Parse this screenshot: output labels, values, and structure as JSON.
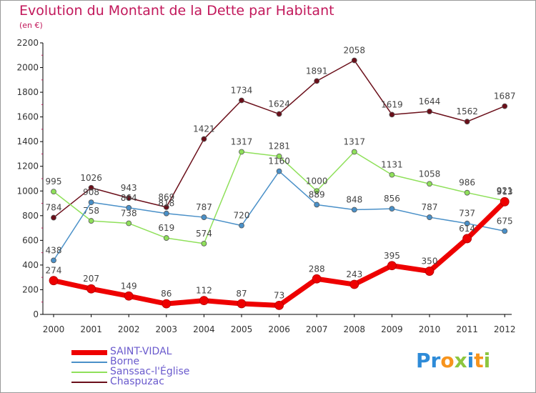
{
  "title": "Evolution du Montant de la Dette par Habitant",
  "subtitle": "(en €)",
  "logo": {
    "text": "ProXiti",
    "letters": [
      "P",
      "r",
      "o",
      "x",
      "i",
      "t",
      "i"
    ],
    "colors": [
      "#2e8bd8",
      "#2e8bd8",
      "#f7941d",
      "#8dc63f",
      "#2e8bd8",
      "#f7941d",
      "#8dc63f"
    ]
  },
  "chart_data": {
    "type": "line",
    "x": [
      "2000",
      "2001",
      "2002",
      "2003",
      "2004",
      "2005",
      "2006",
      "2007",
      "2008",
      "2009",
      "2010",
      "2011",
      "2012"
    ],
    "ylim": [
      0,
      2200
    ],
    "yticks": [
      "0",
      "200",
      "400",
      "600",
      "800",
      "1000",
      "1200",
      "1400",
      "1600",
      "1800",
      "2000",
      "2200"
    ],
    "grid": false,
    "legend_position": "bottom-left",
    "series": [
      {
        "name": "Chaspuzac",
        "color": "#6b0f1a",
        "values": [
          784,
          1026,
          943,
          869,
          1421,
          1734,
          1624,
          1891,
          2058,
          1619,
          1644,
          1562,
          1687
        ],
        "labels": [
          "784",
          "1026",
          "943",
          "869",
          "1421",
          "1734",
          "1624",
          "1891",
          "2058",
          "1619",
          "1644",
          "1562",
          "1687"
        ]
      },
      {
        "name": "Sanssac-l'Église",
        "color": "#8fe05a",
        "values": [
          995,
          758,
          738,
          619,
          574,
          1317,
          1281,
          1000,
          1317,
          1131,
          1058,
          986,
          921
        ],
        "labels": [
          "995",
          "758",
          "738",
          "619",
          "574",
          "1317",
          "1281",
          "1000",
          "1317",
          "1131",
          "1058",
          "986",
          "921"
        ]
      },
      {
        "name": "Borne",
        "color": "#4a90c8",
        "values": [
          438,
          908,
          864,
          818,
          787,
          720,
          1160,
          889,
          848,
          856,
          787,
          737,
          675
        ],
        "labels": [
          "438",
          "908",
          "864",
          "818",
          "787",
          "720",
          "1160",
          "889",
          "848",
          "856",
          "787",
          "737",
          "675"
        ]
      },
      {
        "name": "SAINT-VIDAL",
        "color": "#ee0000",
        "values": [
          274,
          207,
          149,
          86,
          112,
          87,
          73,
          288,
          243,
          395,
          350,
          614,
          913
        ],
        "labels": [
          "274",
          "207",
          "149",
          "86",
          "112",
          "87",
          "73",
          "288",
          "243",
          "395",
          "350",
          "614",
          "913"
        ]
      }
    ],
    "legend_order": [
      "SAINT-VIDAL",
      "Borne",
      "Sanssac-l'Église",
      "Chaspuzac"
    ]
  }
}
